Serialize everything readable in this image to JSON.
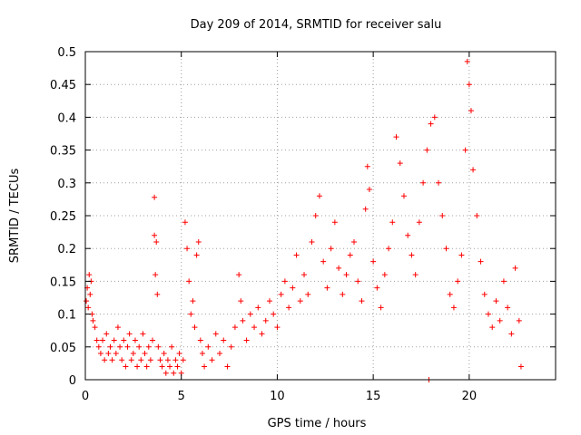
{
  "chart_data": {
    "type": "scatter",
    "title": "Day 209 of 2014, SRMTID for receiver salu",
    "xlabel": "GPS time / hours",
    "ylabel": "SRMTID / TECUs",
    "xlim": [
      0,
      24.5
    ],
    "ylim": [
      0,
      0.5
    ],
    "x_ticks": [
      0,
      5,
      10,
      15,
      20
    ],
    "x_tick_labels": [
      "0",
      "5",
      "10",
      "15",
      "20"
    ],
    "y_ticks": [
      0,
      0.05,
      0.1,
      0.15,
      0.2,
      0.25,
      0.3,
      0.35,
      0.4,
      0.45,
      0.5
    ],
    "y_tick_labels": [
      "0",
      "0.05",
      "0.1",
      "0.15",
      "0.2",
      "0.25",
      "0.3",
      "0.35",
      "0.4",
      "0.45",
      "0.5"
    ],
    "grid": true,
    "marker": "+",
    "color": "#ff0000",
    "series": [
      {
        "name": "salu",
        "points": [
          [
            0.05,
            0.12
          ],
          [
            0.1,
            0.14
          ],
          [
            0.15,
            0.11
          ],
          [
            0.2,
            0.16
          ],
          [
            0.25,
            0.13
          ],
          [
            0.3,
            0.15
          ],
          [
            0.35,
            0.1
          ],
          [
            0.4,
            0.09
          ],
          [
            0.5,
            0.08
          ],
          [
            0.6,
            0.06
          ],
          [
            0.7,
            0.05
          ],
          [
            0.8,
            0.04
          ],
          [
            0.9,
            0.06
          ],
          [
            1.0,
            0.03
          ],
          [
            1.1,
            0.07
          ],
          [
            1.2,
            0.04
          ],
          [
            1.3,
            0.05
          ],
          [
            1.4,
            0.03
          ],
          [
            1.5,
            0.06
          ],
          [
            1.6,
            0.04
          ],
          [
            1.7,
            0.08
          ],
          [
            1.8,
            0.05
          ],
          [
            1.9,
            0.03
          ],
          [
            2.0,
            0.06
          ],
          [
            2.1,
            0.02
          ],
          [
            2.2,
            0.05
          ],
          [
            2.3,
            0.07
          ],
          [
            2.4,
            0.03
          ],
          [
            2.5,
            0.04
          ],
          [
            2.6,
            0.06
          ],
          [
            2.7,
            0.02
          ],
          [
            2.8,
            0.05
          ],
          [
            2.9,
            0.03
          ],
          [
            3.0,
            0.07
          ],
          [
            3.1,
            0.04
          ],
          [
            3.2,
            0.02
          ],
          [
            3.3,
            0.05
          ],
          [
            3.4,
            0.03
          ],
          [
            3.5,
            0.06
          ],
          [
            3.6,
            0.278
          ],
          [
            3.6,
            0.22
          ],
          [
            3.65,
            0.16
          ],
          [
            3.7,
            0.21
          ],
          [
            3.75,
            0.13
          ],
          [
            3.8,
            0.05
          ],
          [
            3.9,
            0.03
          ],
          [
            4.0,
            0.02
          ],
          [
            4.1,
            0.04
          ],
          [
            4.2,
            0.01
          ],
          [
            4.3,
            0.03
          ],
          [
            4.4,
            0.02
          ],
          [
            4.5,
            0.05
          ],
          [
            4.6,
            0.01
          ],
          [
            4.7,
            0.03
          ],
          [
            4.8,
            0.02
          ],
          [
            4.9,
            0.04
          ],
          [
            5.0,
            0.01
          ],
          [
            5.1,
            0.03
          ],
          [
            5.2,
            0.24
          ],
          [
            5.3,
            0.2
          ],
          [
            5.4,
            0.15
          ],
          [
            5.5,
            0.1
          ],
          [
            5.6,
            0.12
          ],
          [
            5.7,
            0.08
          ],
          [
            5.8,
            0.19
          ],
          [
            5.9,
            0.21
          ],
          [
            6.0,
            0.06
          ],
          [
            6.1,
            0.04
          ],
          [
            6.2,
            0.02
          ],
          [
            6.4,
            0.05
          ],
          [
            6.6,
            0.03
          ],
          [
            6.8,
            0.07
          ],
          [
            7.0,
            0.04
          ],
          [
            7.2,
            0.06
          ],
          [
            7.4,
            0.02
          ],
          [
            7.6,
            0.05
          ],
          [
            7.8,
            0.08
          ],
          [
            8.0,
            0.16
          ],
          [
            8.1,
            0.12
          ],
          [
            8.2,
            0.09
          ],
          [
            8.4,
            0.06
          ],
          [
            8.6,
            0.1
          ],
          [
            8.8,
            0.08
          ],
          [
            9.0,
            0.11
          ],
          [
            9.2,
            0.07
          ],
          [
            9.4,
            0.09
          ],
          [
            9.6,
            0.12
          ],
          [
            9.8,
            0.1
          ],
          [
            10.0,
            0.08
          ],
          [
            10.2,
            0.13
          ],
          [
            10.4,
            0.15
          ],
          [
            10.6,
            0.11
          ],
          [
            10.8,
            0.14
          ],
          [
            11.0,
            0.19
          ],
          [
            11.2,
            0.12
          ],
          [
            11.4,
            0.16
          ],
          [
            11.6,
            0.13
          ],
          [
            11.8,
            0.21
          ],
          [
            12.0,
            0.25
          ],
          [
            12.2,
            0.28
          ],
          [
            12.4,
            0.18
          ],
          [
            12.6,
            0.14
          ],
          [
            12.8,
            0.2
          ],
          [
            13.0,
            0.24
          ],
          [
            13.2,
            0.17
          ],
          [
            13.4,
            0.13
          ],
          [
            13.6,
            0.16
          ],
          [
            13.8,
            0.19
          ],
          [
            14.0,
            0.21
          ],
          [
            14.2,
            0.15
          ],
          [
            14.4,
            0.12
          ],
          [
            14.6,
            0.26
          ],
          [
            14.7,
            0.325
          ],
          [
            14.8,
            0.29
          ],
          [
            15.0,
            0.18
          ],
          [
            15.2,
            0.14
          ],
          [
            15.4,
            0.11
          ],
          [
            15.6,
            0.16
          ],
          [
            15.8,
            0.2
          ],
          [
            16.0,
            0.24
          ],
          [
            16.2,
            0.37
          ],
          [
            16.4,
            0.33
          ],
          [
            16.6,
            0.28
          ],
          [
            16.8,
            0.22
          ],
          [
            17.0,
            0.19
          ],
          [
            17.2,
            0.16
          ],
          [
            17.4,
            0.24
          ],
          [
            17.6,
            0.3
          ],
          [
            17.8,
            0.35
          ],
          [
            17.9,
            0.0
          ],
          [
            18.0,
            0.39
          ],
          [
            18.2,
            0.4
          ],
          [
            18.4,
            0.3
          ],
          [
            18.6,
            0.25
          ],
          [
            18.8,
            0.2
          ],
          [
            19.0,
            0.13
          ],
          [
            19.2,
            0.11
          ],
          [
            19.4,
            0.15
          ],
          [
            19.6,
            0.19
          ],
          [
            19.8,
            0.35
          ],
          [
            19.9,
            0.485
          ],
          [
            20.0,
            0.45
          ],
          [
            20.1,
            0.41
          ],
          [
            20.2,
            0.32
          ],
          [
            20.4,
            0.25
          ],
          [
            20.6,
            0.18
          ],
          [
            20.8,
            0.13
          ],
          [
            21.0,
            0.1
          ],
          [
            21.2,
            0.08
          ],
          [
            21.4,
            0.12
          ],
          [
            21.6,
            0.09
          ],
          [
            21.8,
            0.15
          ],
          [
            22.0,
            0.11
          ],
          [
            22.2,
            0.07
          ],
          [
            22.4,
            0.17
          ],
          [
            22.6,
            0.09
          ],
          [
            22.7,
            0.02
          ]
        ]
      }
    ]
  }
}
